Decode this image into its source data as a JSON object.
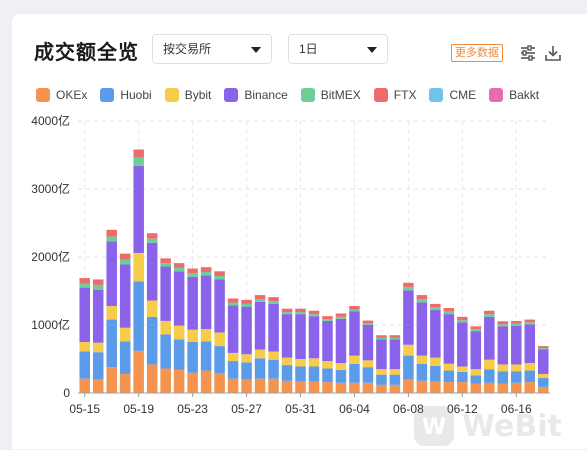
{
  "header": {
    "title": "成交额全览",
    "exchange_select": "按交易所",
    "period_select": "1日",
    "more_button": "更多数据"
  },
  "watermark": "WeBit",
  "chart_data": {
    "type": "bar",
    "stacked": true,
    "y_unit": "亿",
    "ylim": [
      0,
      4000
    ],
    "yticks": [
      {
        "value": 0,
        "label": "0"
      },
      {
        "value": 1000,
        "label": "1000亿"
      },
      {
        "value": 2000,
        "label": "2000亿"
      },
      {
        "value": 3000,
        "label": "3000亿"
      },
      {
        "value": 4000,
        "label": "4000亿"
      }
    ],
    "xtick_labels": [
      {
        "index": 0,
        "label": "05-15"
      },
      {
        "index": 4,
        "label": "05-19"
      },
      {
        "index": 8,
        "label": "05-23"
      },
      {
        "index": 12,
        "label": "05-27"
      },
      {
        "index": 16,
        "label": "05-31"
      },
      {
        "index": 20,
        "label": "06-04"
      },
      {
        "index": 24,
        "label": "06-08"
      },
      {
        "index": 28,
        "label": "06-12"
      },
      {
        "index": 32,
        "label": "06-16"
      }
    ],
    "categories": [
      "05-15",
      "05-16",
      "05-17",
      "05-18",
      "05-19",
      "05-20",
      "05-21",
      "05-22",
      "05-23",
      "05-24",
      "05-25",
      "05-26",
      "05-27",
      "05-28",
      "05-29",
      "05-30",
      "05-31",
      "06-01",
      "06-02",
      "06-03",
      "06-04",
      "06-05",
      "06-06",
      "06-07",
      "06-08",
      "06-09",
      "06-10",
      "06-11",
      "06-12",
      "06-13",
      "06-14",
      "06-15",
      "06-16",
      "06-17",
      "06-18"
    ],
    "series": [
      {
        "name": "OKEx",
        "color": "#f5944e",
        "values": [
          210,
          200,
          380,
          280,
          620,
          420,
          360,
          340,
          300,
          330,
          290,
          210,
          200,
          210,
          210,
          180,
          170,
          170,
          160,
          150,
          150,
          150,
          120,
          120,
          200,
          180,
          170,
          160,
          160,
          140,
          150,
          140,
          150,
          160,
          90
        ]
      },
      {
        "name": "Huobi",
        "color": "#5b9bea",
        "values": [
          400,
          400,
          700,
          480,
          1020,
          700,
          500,
          450,
          450,
          430,
          400,
          260,
          250,
          300,
          280,
          230,
          220,
          220,
          200,
          190,
          280,
          230,
          150,
          150,
          350,
          250,
          230,
          170,
          150,
          120,
          200,
          180,
          170,
          170,
          130
        ]
      },
      {
        "name": "Bybit",
        "color": "#f7cc4a",
        "values": [
          140,
          140,
          200,
          200,
          420,
          240,
          200,
          200,
          180,
          180,
          200,
          120,
          120,
          130,
          120,
          110,
          110,
          120,
          110,
          100,
          120,
          100,
          80,
          80,
          160,
          120,
          120,
          100,
          80,
          90,
          140,
          100,
          100,
          110,
          60
        ]
      },
      {
        "name": "Binance",
        "color": "#8b62ea",
        "values": [
          800,
          780,
          950,
          930,
          1280,
          850,
          800,
          800,
          780,
          790,
          780,
          700,
          700,
          700,
          700,
          640,
          660,
          620,
          590,
          650,
          650,
          520,
          440,
          440,
          800,
          780,
          700,
          730,
          650,
          560,
          630,
          560,
          570,
          570,
          360
        ]
      },
      {
        "name": "BitMEX",
        "color": "#6ccf97",
        "values": [
          60,
          70,
          70,
          70,
          120,
          60,
          50,
          50,
          50,
          50,
          50,
          40,
          40,
          40,
          40,
          30,
          30,
          30,
          25,
          30,
          30,
          25,
          20,
          20,
          50,
          50,
          40,
          40,
          30,
          30,
          40,
          30,
          30,
          30,
          20
        ]
      },
      {
        "name": "FTX",
        "color": "#ee6b6b",
        "values": [
          80,
          80,
          100,
          90,
          120,
          80,
          70,
          70,
          70,
          70,
          70,
          60,
          60,
          60,
          60,
          50,
          50,
          50,
          45,
          50,
          50,
          40,
          40,
          40,
          60,
          60,
          50,
          50,
          50,
          40,
          50,
          45,
          40,
          40,
          30
        ]
      },
      {
        "name": "CME",
        "color": "#6ec4ea",
        "values": [
          0,
          0,
          0,
          0,
          0,
          0,
          0,
          0,
          0,
          0,
          0,
          0,
          0,
          0,
          0,
          0,
          0,
          0,
          0,
          0,
          0,
          0,
          0,
          0,
          0,
          0,
          0,
          0,
          0,
          0,
          0,
          0,
          0,
          0,
          0
        ]
      },
      {
        "name": "Bakkt",
        "color": "#e56cb5",
        "values": [
          0,
          0,
          0,
          0,
          0,
          0,
          0,
          0,
          0,
          0,
          0,
          0,
          0,
          0,
          0,
          0,
          0,
          0,
          0,
          0,
          0,
          0,
          0,
          0,
          0,
          0,
          0,
          0,
          0,
          0,
          0,
          0,
          0,
          0,
          0
        ]
      }
    ],
    "grid": true,
    "legend_position": "top"
  }
}
